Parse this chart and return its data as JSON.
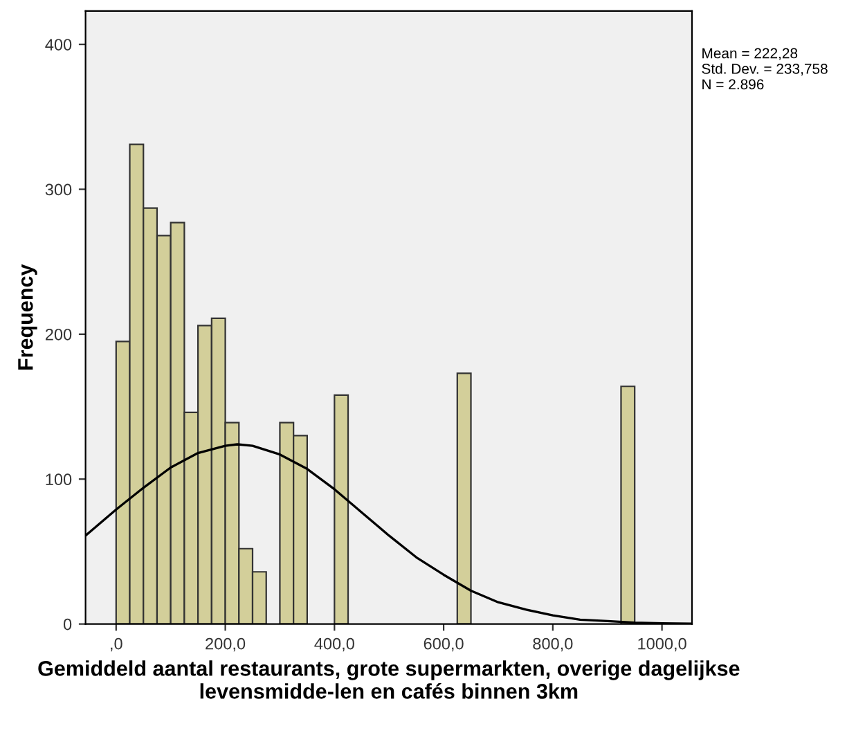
{
  "chart_data": {
    "type": "histogram",
    "xlabel": "Gemiddeld aantal restaurants, grote supermarkten, overige dagelijkse levensmidde-len en cafés binnen 3km",
    "ylabel": "Frequency",
    "bins": [
      0,
      25,
      50,
      75,
      100,
      125,
      150,
      175,
      200,
      225,
      250,
      275,
      300,
      325,
      350,
      375,
      400,
      425,
      450,
      475,
      500,
      525,
      550,
      575,
      600,
      625,
      650,
      675,
      700,
      725,
      750,
      775,
      800,
      825,
      850,
      875,
      900,
      925,
      950
    ],
    "values": [
      195,
      331,
      287,
      268,
      277,
      146,
      206,
      211,
      139,
      52,
      36,
      0,
      139,
      130,
      0,
      0,
      158,
      0,
      0,
      0,
      0,
      0,
      0,
      0,
      0,
      173,
      0,
      0,
      0,
      0,
      0,
      0,
      0,
      0,
      0,
      0,
      0,
      164
    ],
    "color": "#d3cf9a",
    "series": [
      {
        "type": "line",
        "color": "#000000",
        "x": [
          -56,
          0,
          50,
          100,
          150,
          200,
          222,
          250,
          300,
          350,
          400,
          450,
          500,
          550,
          600,
          650,
          700,
          750,
          800,
          850,
          900,
          950,
          1000,
          1055
        ],
        "values": [
          61,
          79,
          94,
          108,
          118,
          123,
          124,
          123,
          117,
          107,
          93,
          77,
          61,
          46,
          34,
          23,
          15,
          10,
          6,
          3,
          2,
          1,
          0.5,
          0.2
        ]
      }
    ],
    "xlim": [
      -56,
      1055
    ],
    "ylim": [
      0,
      423
    ],
    "xticks": [
      {
        "value": 0,
        "label": ",0"
      },
      {
        "value": 200,
        "label": "200,0"
      },
      {
        "value": 400,
        "label": "400,0"
      },
      {
        "value": 600,
        "label": "600,0"
      },
      {
        "value": 800,
        "label": "800,0"
      },
      {
        "value": 1000,
        "label": "1000,0"
      }
    ],
    "yticks": [
      0,
      100,
      200,
      300,
      400
    ],
    "grid": false,
    "annotations": [
      "Mean = 222,28\nStd. Dev. = 233,758\nN = 2.896"
    ]
  }
}
